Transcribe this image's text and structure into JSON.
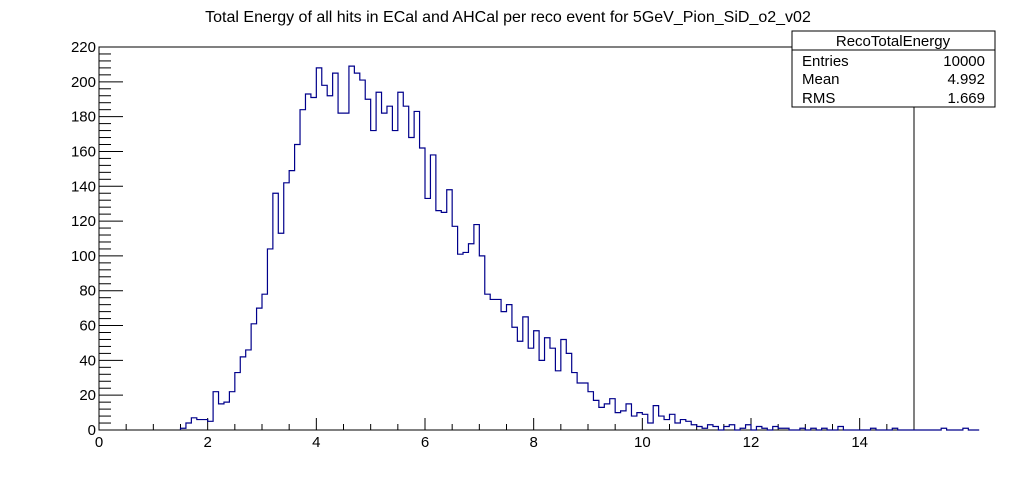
{
  "chart_data": {
    "type": "histogram",
    "title": "Total Energy of all hits in ECal and AHCal per reco event for 5GeV_Pion_SiD_o2_v02",
    "xlabel": "",
    "ylabel": "",
    "xlim": [
      0,
      15
    ],
    "ylim": [
      0,
      220
    ],
    "x_ticks": [
      0,
      2,
      4,
      6,
      8,
      10,
      12,
      14
    ],
    "y_ticks": [
      0,
      20,
      40,
      60,
      80,
      100,
      120,
      140,
      160,
      180,
      200,
      220
    ],
    "bin_width": 0.1,
    "series": [
      {
        "line_color": "#00008b",
        "bins_start": 1.5,
        "counts": [
          1,
          4,
          7,
          6,
          6,
          5,
          22,
          15,
          16,
          22,
          33,
          42,
          46,
          61,
          70,
          78,
          104,
          136,
          113,
          142,
          149,
          164,
          184,
          193,
          191,
          208,
          198,
          192,
          205,
          182,
          182,
          209,
          205,
          201,
          190,
          172,
          194,
          182,
          186,
          172,
          194,
          186,
          168,
          183,
          162,
          133,
          158,
          126,
          125,
          138,
          117,
          101,
          102,
          107,
          118,
          100,
          78,
          75,
          75,
          68,
          72,
          59,
          51,
          65,
          47,
          57,
          40,
          53,
          47,
          34,
          52,
          44,
          33,
          27,
          27,
          22,
          17,
          13,
          15,
          18,
          10,
          11,
          15,
          8,
          10,
          9,
          4,
          14,
          8,
          6,
          9,
          4,
          6,
          5,
          3,
          2,
          1,
          3,
          2,
          0,
          2,
          3,
          0,
          1,
          3,
          0,
          2,
          1,
          0,
          2,
          1,
          1,
          0,
          0,
          1,
          0,
          1,
          0,
          1,
          0,
          0,
          2,
          0,
          0,
          0,
          0,
          0,
          1,
          0,
          0,
          0,
          1,
          0,
          0,
          0,
          0,
          0,
          0,
          0,
          0,
          1,
          0,
          0,
          0,
          1,
          0,
          0
        ]
      }
    ],
    "grid": false,
    "legend": "top-right"
  },
  "stats_box": {
    "title": "RecoTotalEnergy",
    "rows": [
      {
        "label": "Entries",
        "value": "10000"
      },
      {
        "label": "Mean",
        "value": "4.992"
      },
      {
        "label": "RMS",
        "value": "1.669"
      }
    ]
  }
}
